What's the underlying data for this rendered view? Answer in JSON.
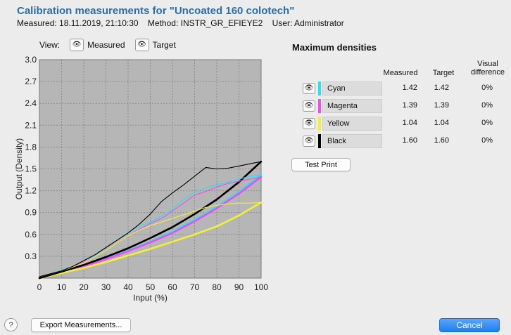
{
  "header": {
    "title": "Calibration measurements for \"Uncoated 160 colotech\"",
    "measured": "Measured: 18.11.2019, 21:10:30",
    "method": "Method: INSTR_GR_EFIEYE2",
    "user": "User: Administrator"
  },
  "view": {
    "label": "View:",
    "measured": "Measured",
    "target": "Target"
  },
  "icons": {
    "eye": "eye-icon",
    "help": "question-mark-icon"
  },
  "densities": {
    "title": "Maximum densities",
    "col_measured": "Measured",
    "col_target": "Target",
    "col_visual_1": "Visual",
    "col_visual_2": "difference",
    "rows": [
      {
        "name": "Cyan",
        "color": "#21e3f2",
        "measured": "1.42",
        "target": "1.42",
        "diff": "0%"
      },
      {
        "name": "Magenta",
        "color": "#f04cf0",
        "measured": "1.39",
        "target": "1.39",
        "diff": "0%"
      },
      {
        "name": "Yellow",
        "color": "#f2ef3a",
        "measured": "1.04",
        "target": "1.04",
        "diff": "0%"
      },
      {
        "name": "Black",
        "color": "#000000",
        "measured": "1.60",
        "target": "1.60",
        "diff": "0%"
      }
    ]
  },
  "buttons": {
    "test_print": "Test Print",
    "export": "Export Measurements...",
    "cancel": "Cancel"
  },
  "chart_data": {
    "type": "line",
    "xlabel": "Input (%)",
    "ylabel": "Output (Density)",
    "xlim": [
      0,
      100
    ],
    "ylim": [
      0,
      3.0
    ],
    "x_ticks": [
      "0",
      "10",
      "20",
      "30",
      "40",
      "50",
      "60",
      "70",
      "80",
      "90",
      "100"
    ],
    "y_ticks": [
      "0.3",
      "0.6",
      "0.9",
      "1.2",
      "1.5",
      "1.8",
      "2.1",
      "2.4",
      "2.7",
      "3.0"
    ],
    "grid": true,
    "series": [
      {
        "name": "Cyan",
        "kind": "measured",
        "color": "#21e3f2",
        "x": [
          0,
          5,
          10,
          15,
          20,
          25,
          30,
          35,
          40,
          45,
          50,
          55,
          60,
          65,
          70,
          75,
          80,
          85,
          90,
          95,
          100
        ],
        "y": [
          0.02,
          0.06,
          0.11,
          0.16,
          0.24,
          0.31,
          0.42,
          0.52,
          0.63,
          0.71,
          0.77,
          0.85,
          0.95,
          1.08,
          1.18,
          1.24,
          1.28,
          1.32,
          1.36,
          1.4,
          1.42
        ]
      },
      {
        "name": "Cyan",
        "kind": "target",
        "color": "#21e3f2",
        "x": [
          0,
          10,
          20,
          30,
          40,
          50,
          60,
          70,
          80,
          90,
          100
        ],
        "y": [
          0.0,
          0.08,
          0.17,
          0.27,
          0.38,
          0.5,
          0.64,
          0.8,
          0.98,
          1.18,
          1.42
        ]
      },
      {
        "name": "Magenta",
        "kind": "measured",
        "color": "#f04cf0",
        "x": [
          0,
          5,
          10,
          15,
          20,
          25,
          30,
          35,
          40,
          45,
          50,
          55,
          60,
          65,
          70,
          75,
          80,
          85,
          90,
          95,
          100
        ],
        "y": [
          0.02,
          0.06,
          0.1,
          0.16,
          0.22,
          0.29,
          0.38,
          0.48,
          0.58,
          0.67,
          0.75,
          0.82,
          0.92,
          1.03,
          1.14,
          1.19,
          1.25,
          1.3,
          1.33,
          1.36,
          1.39
        ]
      },
      {
        "name": "Magenta",
        "kind": "target",
        "color": "#f04cf0",
        "x": [
          0,
          10,
          20,
          30,
          40,
          50,
          60,
          70,
          80,
          90,
          100
        ],
        "y": [
          0.0,
          0.08,
          0.16,
          0.26,
          0.37,
          0.49,
          0.62,
          0.78,
          0.96,
          1.16,
          1.39
        ]
      },
      {
        "name": "Yellow",
        "kind": "measured",
        "color": "#f2ef3a",
        "x": [
          0,
          5,
          10,
          15,
          20,
          25,
          30,
          35,
          40,
          45,
          50,
          55,
          60,
          65,
          70,
          75,
          80,
          85,
          90,
          95,
          100
        ],
        "y": [
          0.02,
          0.06,
          0.1,
          0.15,
          0.21,
          0.29,
          0.38,
          0.48,
          0.58,
          0.66,
          0.72,
          0.77,
          0.82,
          0.87,
          0.92,
          0.97,
          1.0,
          1.02,
          1.03,
          1.03,
          1.04
        ]
      },
      {
        "name": "Yellow",
        "kind": "target",
        "color": "#f2ef3a",
        "x": [
          0,
          10,
          20,
          30,
          40,
          50,
          60,
          70,
          80,
          90,
          100
        ],
        "y": [
          0.0,
          0.07,
          0.14,
          0.22,
          0.31,
          0.4,
          0.5,
          0.6,
          0.71,
          0.86,
          1.04
        ]
      },
      {
        "name": "Black",
        "kind": "measured",
        "color": "#000000",
        "x": [
          0,
          5,
          10,
          15,
          20,
          25,
          30,
          35,
          40,
          45,
          50,
          55,
          60,
          65,
          70,
          75,
          80,
          85,
          90,
          95,
          100
        ],
        "y": [
          0.02,
          0.06,
          0.1,
          0.16,
          0.24,
          0.32,
          0.42,
          0.52,
          0.62,
          0.74,
          0.88,
          1.05,
          1.17,
          1.28,
          1.4,
          1.52,
          1.5,
          1.51,
          1.54,
          1.57,
          1.6
        ]
      },
      {
        "name": "Black",
        "kind": "target",
        "color": "#000000",
        "x": [
          0,
          10,
          20,
          30,
          40,
          50,
          60,
          70,
          80,
          90,
          100
        ],
        "y": [
          0.0,
          0.09,
          0.18,
          0.29,
          0.41,
          0.55,
          0.7,
          0.88,
          1.08,
          1.32,
          1.6
        ]
      }
    ]
  }
}
